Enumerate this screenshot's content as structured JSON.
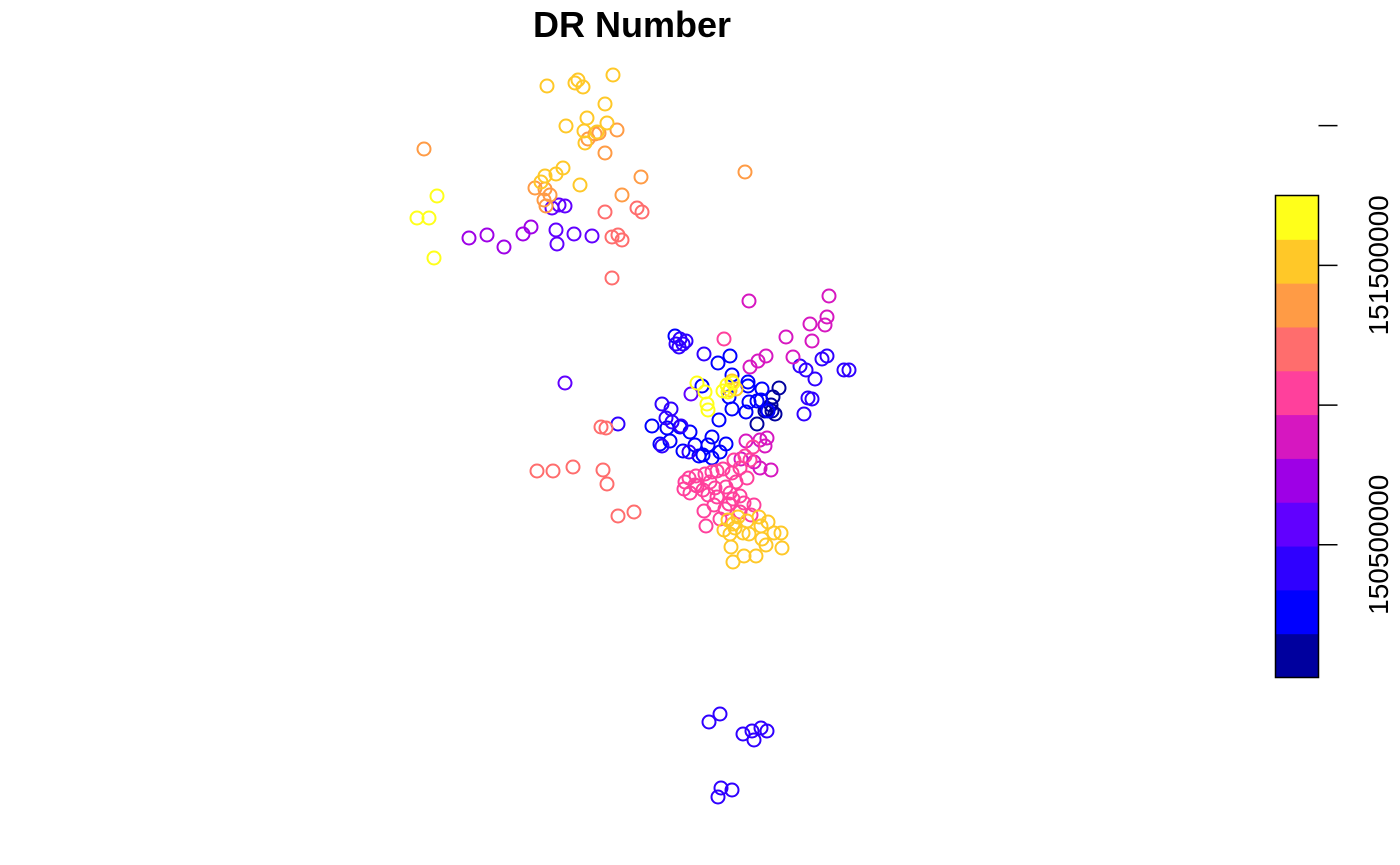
{
  "chart_data": {
    "type": "scatter",
    "title": "DR Number",
    "xlabel": "",
    "ylabel": "",
    "axes_shown": false,
    "grid": false,
    "legend": {
      "type": "color-key",
      "placement": "right",
      "range": [
        150025000,
        151750000
      ],
      "tick_labels": [
        "150500000",
        "151500000"
      ],
      "ticks": [
        {
          "value": 150500000,
          "label": "150500000",
          "show_label": true
        },
        {
          "value": 151000000,
          "label": "",
          "show_label": false
        },
        {
          "value": 151500000,
          "label": "151500000",
          "show_label": true
        },
        {
          "value": 152000000,
          "label": "",
          "show_label": false
        }
      ],
      "palette": [
        "#00009E",
        "#0000FF",
        "#2F00FF",
        "#6100FF",
        "#9E00E6",
        "#D617C0",
        "#FF409C",
        "#FF6D6D",
        "#FF9B45",
        "#FFC828",
        "#FFFF1A"
      ]
    },
    "groups": [
      {
        "color": "#00009E",
        "points": [
          [
            779,
            388
          ],
          [
            773,
            397
          ],
          [
            771,
            405
          ],
          [
            767,
            410
          ],
          [
            772,
            411
          ],
          [
            757,
            424
          ],
          [
            775,
            414
          ],
          [
            765,
            411
          ]
        ]
      },
      {
        "color": "#0000FF",
        "points": [
          [
            675,
            336
          ],
          [
            718,
            363
          ],
          [
            730,
            356
          ],
          [
            732,
            375
          ],
          [
            748,
            382
          ],
          [
            757,
            401
          ],
          [
            749,
            402
          ],
          [
            762,
            389
          ],
          [
            761,
            400
          ],
          [
            768,
            411
          ],
          [
            732,
            409
          ],
          [
            746,
            412
          ],
          [
            719,
            420
          ],
          [
            712,
            437
          ],
          [
            726,
            444
          ],
          [
            708,
            445
          ],
          [
            695,
            445
          ],
          [
            699,
            456
          ],
          [
            712,
            458
          ],
          [
            703,
            455
          ],
          [
            690,
            432
          ],
          [
            670,
            441
          ],
          [
            652,
            426
          ],
          [
            660,
            444
          ],
          [
            680,
            427
          ],
          [
            667,
            428
          ],
          [
            683,
            451
          ],
          [
            720,
            452
          ],
          [
            702,
            386
          ],
          [
            748,
            386
          ],
          [
            729,
            397
          ]
        ]
      },
      {
        "color": "#2F00FF",
        "points": [
          [
            720,
            714
          ],
          [
            709,
            722
          ],
          [
            743,
            734
          ],
          [
            752,
            731
          ],
          [
            761,
            728
          ],
          [
            767,
            731
          ],
          [
            754,
            740
          ],
          [
            721,
            788
          ],
          [
            732,
            790
          ],
          [
            718,
            797
          ],
          [
            680,
            339
          ],
          [
            683,
            344
          ],
          [
            676,
            344
          ],
          [
            686,
            341
          ],
          [
            679,
            347
          ],
          [
            704,
            354
          ],
          [
            662,
            404
          ],
          [
            671,
            409
          ],
          [
            672,
            422
          ],
          [
            681,
            426
          ],
          [
            666,
            418
          ],
          [
            662,
            446
          ],
          [
            689,
            452
          ],
          [
            808,
            398
          ],
          [
            812,
            399
          ],
          [
            804,
            414
          ],
          [
            827,
            356
          ],
          [
            822,
            359
          ],
          [
            844,
            370
          ],
          [
            849,
            370
          ],
          [
            815,
            379
          ],
          [
            800,
            366
          ],
          [
            806,
            370
          ],
          [
            618,
            424
          ]
        ]
      },
      {
        "color": "#6100FF",
        "points": [
          [
            552,
            208
          ],
          [
            559,
            205
          ],
          [
            565,
            206
          ],
          [
            556,
            230
          ],
          [
            557,
            244
          ],
          [
            574,
            234
          ],
          [
            592,
            236
          ],
          [
            565,
            383
          ],
          [
            691,
            394
          ]
        ]
      },
      {
        "color": "#9E00E6",
        "points": [
          [
            469,
            238
          ],
          [
            487,
            235
          ],
          [
            504,
            247
          ],
          [
            523,
            234
          ],
          [
            531,
            227
          ]
        ]
      },
      {
        "color": "#D617C0",
        "points": [
          [
            749,
            301
          ],
          [
            829,
            296
          ],
          [
            827,
            317
          ],
          [
            825,
            325
          ],
          [
            810,
            324
          ],
          [
            786,
            337
          ],
          [
            812,
            341
          ],
          [
            793,
            357
          ],
          [
            766,
            356
          ],
          [
            758,
            361
          ],
          [
            750,
            367
          ],
          [
            746,
            441
          ],
          [
            760,
            440
          ],
          [
            767,
            438
          ],
          [
            765,
            446
          ],
          [
            741,
            459
          ],
          [
            754,
            462
          ],
          [
            760,
            468
          ],
          [
            771,
            470
          ]
        ]
      },
      {
        "color": "#FF409C",
        "points": [
          [
            724,
            339
          ],
          [
            753,
            447
          ],
          [
            745,
            456
          ],
          [
            750,
            460
          ],
          [
            734,
            460
          ],
          [
            740,
            468
          ],
          [
            732,
            473
          ],
          [
            747,
            478
          ],
          [
            736,
            482
          ],
          [
            726,
            487
          ],
          [
            730,
            493
          ],
          [
            740,
            496
          ],
          [
            733,
            499
          ],
          [
            729,
            504
          ],
          [
            744,
            503
          ],
          [
            754,
            505
          ],
          [
            740,
            512
          ],
          [
            751,
            515
          ],
          [
            723,
            469
          ],
          [
            717,
            471
          ],
          [
            712,
            472
          ],
          [
            705,
            474
          ],
          [
            696,
            476
          ],
          [
            689,
            478
          ],
          [
            685,
            482
          ],
          [
            695,
            485
          ],
          [
            684,
            489
          ],
          [
            690,
            493
          ],
          [
            697,
            486
          ],
          [
            703,
            490
          ],
          [
            708,
            495
          ],
          [
            717,
            497
          ],
          [
            714,
            505
          ],
          [
            725,
            509
          ],
          [
            704,
            511
          ],
          [
            706,
            526
          ],
          [
            720,
            519
          ],
          [
            710,
            482
          ],
          [
            715,
            488
          ]
        ]
      },
      {
        "color": "#FF6D6D",
        "points": [
          [
            605,
            212
          ],
          [
            637,
            208
          ],
          [
            642,
            212
          ],
          [
            612,
            237
          ],
          [
            622,
            240
          ],
          [
            618,
            235
          ],
          [
            612,
            278
          ],
          [
            601,
            427
          ],
          [
            606,
            428
          ],
          [
            537,
            471
          ],
          [
            553,
            471
          ],
          [
            573,
            467
          ],
          [
            603,
            470
          ],
          [
            607,
            484
          ],
          [
            618,
            516
          ],
          [
            634,
            512
          ]
        ]
      },
      {
        "color": "#FF9B45",
        "points": [
          [
            424,
            149
          ],
          [
            605,
            153
          ],
          [
            617,
            130
          ],
          [
            599,
            133
          ],
          [
            595,
            134
          ],
          [
            588,
            139
          ],
          [
            641,
            177
          ],
          [
            622,
            195
          ],
          [
            535,
            188
          ],
          [
            545,
            189
          ],
          [
            550,
            195
          ],
          [
            544,
            200
          ],
          [
            546,
            206
          ],
          [
            745,
            172
          ]
        ]
      },
      {
        "color": "#FFC828",
        "points": [
          [
            547,
            86
          ],
          [
            578,
            80
          ],
          [
            583,
            87
          ],
          [
            575,
            83
          ],
          [
            613,
            75
          ],
          [
            605,
            104
          ],
          [
            587,
            118
          ],
          [
            566,
            126
          ],
          [
            607,
            123
          ],
          [
            584,
            131
          ],
          [
            585,
            143
          ],
          [
            597,
            132
          ],
          [
            563,
            168
          ],
          [
            556,
            174
          ],
          [
            545,
            176
          ],
          [
            541,
            182
          ],
          [
            580,
            185
          ],
          [
            728,
            520
          ],
          [
            738,
            517
          ],
          [
            733,
            524
          ],
          [
            747,
            521
          ],
          [
            735,
            528
          ],
          [
            724,
            530
          ],
          [
            730,
            534
          ],
          [
            743,
            533
          ],
          [
            749,
            534
          ],
          [
            759,
            517
          ],
          [
            768,
            522
          ],
          [
            761,
            526
          ],
          [
            774,
            533
          ],
          [
            762,
            539
          ],
          [
            781,
            533
          ],
          [
            731,
            547
          ],
          [
            744,
            556
          ],
          [
            756,
            556
          ],
          [
            733,
            562
          ],
          [
            766,
            545
          ],
          [
            782,
            548
          ],
          [
            732,
            381
          ],
          [
            736,
            389
          ],
          [
            730,
            390
          ]
        ]
      },
      {
        "color": "#FFFF1A",
        "points": [
          [
            437,
            196
          ],
          [
            417,
            218
          ],
          [
            429,
            218
          ],
          [
            434,
            258
          ],
          [
            697,
            383
          ],
          [
            705,
            392
          ],
          [
            707,
            404
          ],
          [
            708,
            410
          ],
          [
            727,
            385
          ],
          [
            733,
            383
          ],
          [
            728,
            392
          ],
          [
            723,
            391
          ]
        ]
      }
    ]
  }
}
